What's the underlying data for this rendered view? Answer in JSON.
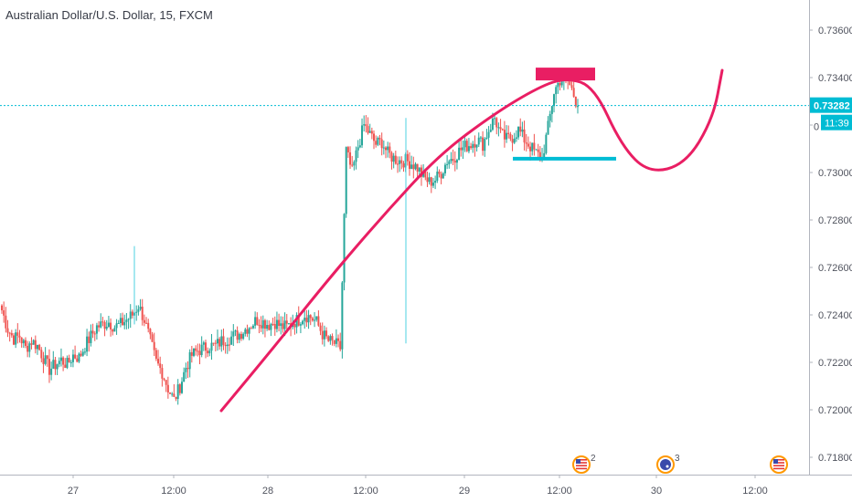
{
  "header": {
    "title": "Australian Dollar/U.S. Dollar, 15, FXCM"
  },
  "price_axis": {
    "ticks": [
      "0.73600",
      "0.73400",
      "0.73282",
      "0.73000",
      "0.72800",
      "0.72600",
      "0.72400",
      "0.72200",
      "0.72000",
      "0.71800"
    ],
    "last_price_label": "0.73282",
    "countdown_label": "11:39",
    "partial_label": "0"
  },
  "time_axis": {
    "ticks": [
      "27",
      "12:00",
      "28",
      "12:00",
      "29",
      "12:00",
      "30",
      "12:00"
    ]
  },
  "colors": {
    "up": "#26a69a",
    "down": "#ef5350",
    "wick_up": "#4dd0e1",
    "projection_curve": "#e91e63",
    "resistance_box": "#e91e63",
    "support_line": "#00bcd4",
    "last_price_line": "#00bcd4",
    "badge_bg": "#00bcd4"
  },
  "events": [
    {
      "icon": "us-flag-icon",
      "count": "2"
    },
    {
      "icon": "au-flag-icon",
      "count": "3"
    },
    {
      "icon": "us-flag-icon",
      "count": ""
    }
  ],
  "chart_data": {
    "type": "candlestick",
    "title": "Australian Dollar/U.S. Dollar, 15, FXCM",
    "symbol": "AUDUSD",
    "interval": "15",
    "source": "FXCM",
    "ylim": [
      0.7176,
      0.7375
    ],
    "last_price": 0.73282,
    "x_ticks": [
      "27",
      "12:00",
      "28",
      "12:00",
      "29",
      "12:00",
      "30",
      "12:00"
    ],
    "y_ticks": [
      0.736,
      0.734,
      0.732,
      0.73,
      0.728,
      0.726,
      0.724,
      0.722,
      0.72,
      0.718
    ],
    "close_series": [
      0.7242,
      0.7234,
      0.723,
      0.7231,
      0.7226,
      0.7229,
      0.7227,
      0.7222,
      0.7217,
      0.7219,
      0.7221,
      0.7219,
      0.7223,
      0.7222,
      0.7227,
      0.7231,
      0.7235,
      0.7236,
      0.7237,
      0.7235,
      0.7236,
      0.7238,
      0.724,
      0.7244,
      0.7238,
      0.7229,
      0.722,
      0.7216,
      0.7209,
      0.7204,
      0.721,
      0.7218,
      0.7223,
      0.7225,
      0.7226,
      0.7227,
      0.7227,
      0.7229,
      0.723,
      0.7231,
      0.7232,
      0.7234,
      0.7236,
      0.7238,
      0.7237,
      0.7236,
      0.7237,
      0.7235,
      0.7235,
      0.7237,
      0.7238,
      0.724,
      0.7239,
      0.7237,
      0.7232,
      0.7229,
      0.7228,
      0.7226,
      0.7309,
      0.73,
      0.7311,
      0.732,
      0.7316,
      0.7312,
      0.7313,
      0.7308,
      0.7306,
      0.7305,
      0.7305,
      0.7304,
      0.7302,
      0.7298,
      0.7296,
      0.7297,
      0.73,
      0.7305,
      0.7306,
      0.7309,
      0.7311,
      0.7312,
      0.7314,
      0.7312,
      0.7318,
      0.7323,
      0.7316,
      0.7314,
      0.7315,
      0.7318,
      0.7314,
      0.7311,
      0.7308,
      0.7306,
      0.7319,
      0.7334,
      0.7339,
      0.734,
      0.7335,
      0.7328
    ],
    "spikes": [
      {
        "day": "27",
        "high": 0.7269
      }
    ],
    "projection_curve": {
      "description_points": [
        [
          0.7201
        ],
        [
          0.7228
        ],
        [
          0.7259
        ],
        [
          0.7287
        ],
        [
          0.7309
        ],
        [
          0.7324
        ],
        [
          0.7335
        ],
        [
          0.734
        ],
        [
          0.7337
        ],
        [
          0.7316
        ],
        [
          0.73
        ],
        [
          0.73
        ],
        [
          0.7313
        ],
        [
          0.7342
        ]
      ]
    },
    "resistance_level": 0.73415,
    "support_level": 0.73058
  }
}
